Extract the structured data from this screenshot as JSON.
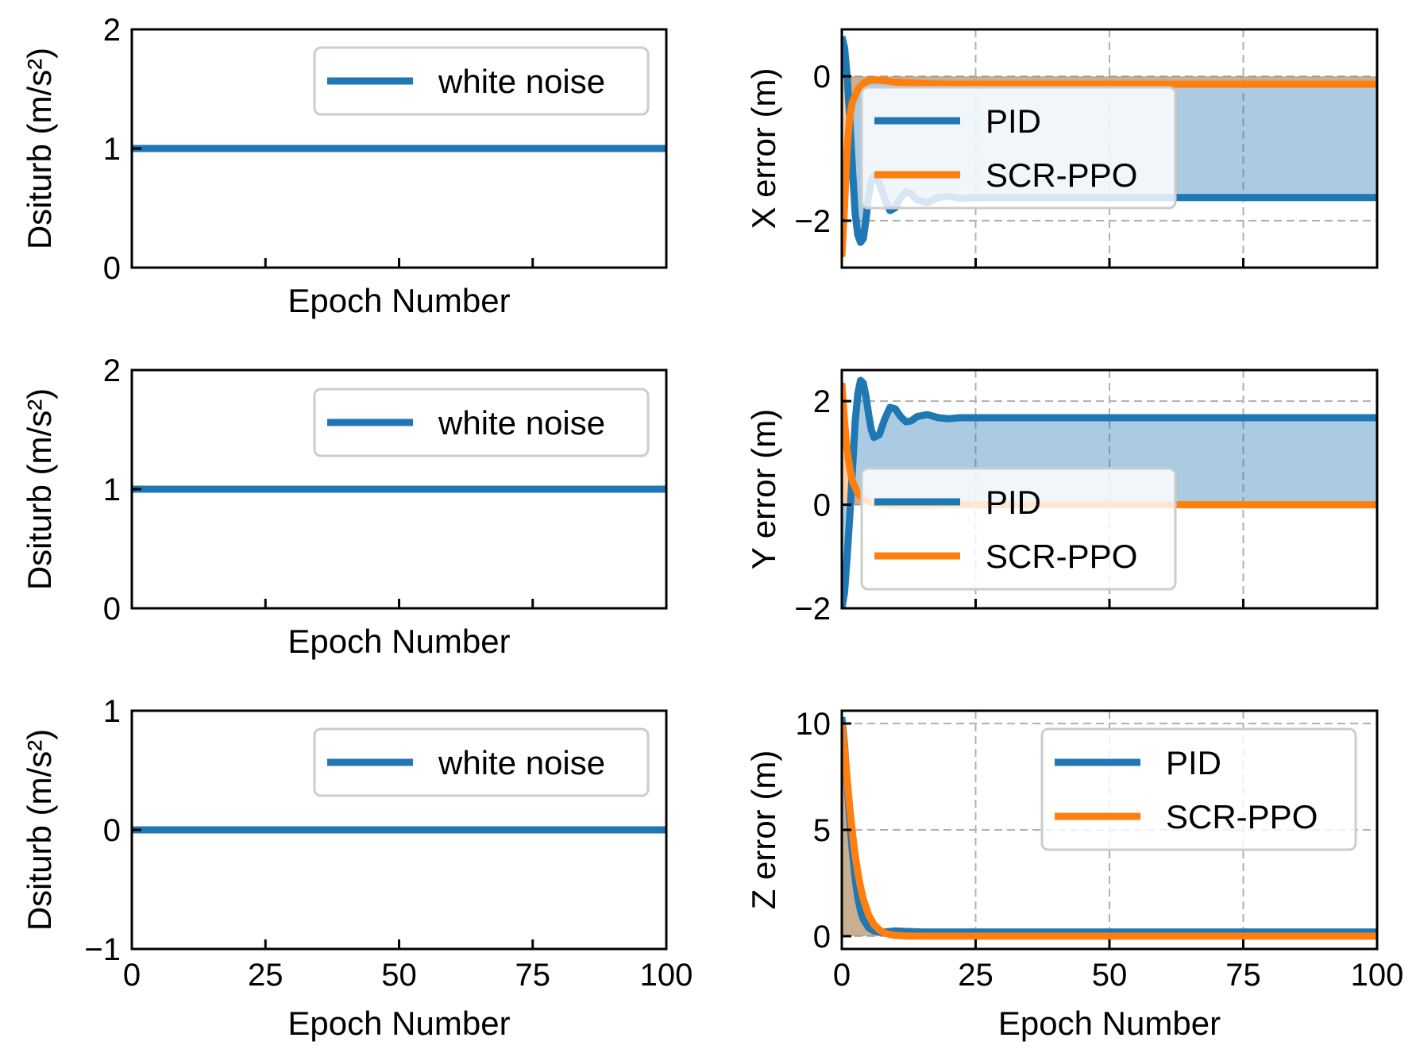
{
  "chart_data": [
    {
      "id": "disturb-x",
      "type": "line",
      "ylabel": "Dsiturb (m/s²)",
      "xlabel": "Epoch Number",
      "xlim": [
        0,
        100
      ],
      "ylim": [
        0,
        2
      ],
      "xticks": [
        0,
        25,
        50,
        75,
        100
      ],
      "show_xticklabels": false,
      "yticks": [
        {
          "v": 0,
          "label": "0"
        },
        {
          "v": 1,
          "label": "1"
        },
        {
          "v": 2,
          "label": "2"
        }
      ],
      "grid": false,
      "legend": {
        "position": "top-right"
      },
      "series": [
        {
          "name": "white noise",
          "color": "#1f77b4",
          "x": [
            0,
            100
          ],
          "y": [
            1,
            1
          ],
          "fill": false
        }
      ]
    },
    {
      "id": "x-error",
      "type": "line",
      "ylabel": "X error (m)",
      "xlabel": "",
      "xlim": [
        0,
        100
      ],
      "ylim": [
        -2.65,
        0.65
      ],
      "xticks": [
        0,
        25,
        50,
        75,
        100
      ],
      "show_xticklabels": false,
      "yticks": [
        {
          "v": -2,
          "label": "−2"
        },
        {
          "v": 0,
          "label": "0"
        }
      ],
      "grid": true,
      "legend": {
        "position": "center-left"
      },
      "series": [
        {
          "name": "PID",
          "color": "#1f77b4",
          "fill": true,
          "fill_color": "#1f77b4",
          "x": [
            0,
            0.5,
            1,
            1.5,
            2,
            2.5,
            3,
            3.5,
            4,
            4.5,
            5,
            5.5,
            6,
            7,
            8,
            9,
            10,
            11,
            12,
            13,
            14,
            16,
            18,
            20,
            22,
            25,
            30,
            50,
            100
          ],
          "y": [
            0.55,
            0.4,
            0.0,
            -0.6,
            -1.3,
            -1.9,
            -2.2,
            -2.3,
            -2.25,
            -2.0,
            -1.65,
            -1.45,
            -1.38,
            -1.48,
            -1.7,
            -1.86,
            -1.82,
            -1.68,
            -1.6,
            -1.63,
            -1.71,
            -1.75,
            -1.68,
            -1.66,
            -1.69,
            -1.68,
            -1.68,
            -1.68,
            -1.68
          ]
        },
        {
          "name": "SCR-PPO",
          "color": "#ff7f0e",
          "fill": true,
          "fill_color": "#ff7f0e",
          "x": [
            0,
            0.5,
            1,
            1.5,
            2,
            3,
            4,
            5,
            6,
            8,
            10,
            15,
            20,
            100
          ],
          "y": [
            -2.5,
            -1.8,
            -1.0,
            -0.55,
            -0.35,
            -0.18,
            -0.1,
            -0.06,
            -0.05,
            -0.06,
            -0.08,
            -0.1,
            -0.11,
            -0.11
          ]
        }
      ]
    },
    {
      "id": "disturb-y",
      "type": "line",
      "ylabel": "Dsiturb (m/s²)",
      "xlabel": "Epoch Number",
      "xlim": [
        0,
        100
      ],
      "ylim": [
        0,
        2
      ],
      "xticks": [
        0,
        25,
        50,
        75,
        100
      ],
      "show_xticklabels": false,
      "yticks": [
        {
          "v": 0,
          "label": "0"
        },
        {
          "v": 1,
          "label": "1"
        },
        {
          "v": 2,
          "label": "2"
        }
      ],
      "grid": false,
      "legend": {
        "position": "top-right"
      },
      "series": [
        {
          "name": "white noise",
          "color": "#1f77b4",
          "x": [
            0,
            100
          ],
          "y": [
            1,
            1
          ],
          "fill": false
        }
      ]
    },
    {
      "id": "y-error",
      "type": "line",
      "ylabel": "Y error (m)",
      "xlabel": "",
      "xlim": [
        0,
        100
      ],
      "ylim": [
        -2,
        2.6
      ],
      "xticks": [
        0,
        25,
        50,
        75,
        100
      ],
      "show_xticklabels": false,
      "yticks": [
        {
          "v": -2,
          "label": "−2"
        },
        {
          "v": 0,
          "label": "0"
        },
        {
          "v": 2,
          "label": "2"
        }
      ],
      "grid": true,
      "legend": {
        "position": "center-left"
      },
      "series": [
        {
          "name": "PID",
          "color": "#1f77b4",
          "fill": true,
          "fill_color": "#1f77b4",
          "x": [
            0,
            0.5,
            1,
            1.5,
            2,
            2.5,
            3,
            3.5,
            4,
            4.5,
            5,
            5.5,
            6,
            7,
            8,
            9,
            10,
            11,
            12,
            13,
            14,
            16,
            18,
            20,
            22,
            25,
            30,
            50,
            100
          ],
          "y": [
            -2.0,
            -1.7,
            -1.0,
            -0.2,
            0.7,
            1.6,
            2.15,
            2.4,
            2.35,
            2.1,
            1.75,
            1.45,
            1.3,
            1.35,
            1.65,
            1.88,
            1.85,
            1.7,
            1.6,
            1.62,
            1.7,
            1.74,
            1.68,
            1.66,
            1.68,
            1.68,
            1.68,
            1.68,
            1.68
          ]
        },
        {
          "name": "SCR-PPO",
          "color": "#ff7f0e",
          "fill": true,
          "fill_color": "#ff7f0e",
          "x": [
            0,
            0.5,
            1,
            1.5,
            2,
            3,
            4,
            5,
            6,
            8,
            10,
            15,
            20,
            100
          ],
          "y": [
            2.35,
            1.6,
            1.05,
            0.7,
            0.45,
            0.22,
            0.12,
            0.06,
            0.03,
            0.0,
            -0.01,
            -0.01,
            0.0,
            0.0
          ]
        }
      ]
    },
    {
      "id": "disturb-z",
      "type": "line",
      "ylabel": "Dsiturb (m/s²)",
      "xlabel": "Epoch Number",
      "xlim": [
        0,
        100
      ],
      "ylim": [
        -1,
        1
      ],
      "xticks": [
        0,
        25,
        50,
        75,
        100
      ],
      "show_xticklabels": true,
      "xticklabels": [
        "0",
        "25",
        "50",
        "75",
        "100"
      ],
      "yticks": [
        {
          "v": -1,
          "label": "−1"
        },
        {
          "v": 0,
          "label": "0"
        },
        {
          "v": 1,
          "label": "1"
        }
      ],
      "grid": false,
      "legend": {
        "position": "top-right"
      },
      "series": [
        {
          "name": "white noise",
          "color": "#1f77b4",
          "x": [
            0,
            100
          ],
          "y": [
            0,
            0
          ],
          "fill": false
        }
      ]
    },
    {
      "id": "z-error",
      "type": "line",
      "ylabel": "Z error (m)",
      "xlabel": "Epoch Number",
      "xlim": [
        0,
        100
      ],
      "ylim": [
        -0.6,
        10.6
      ],
      "xticks": [
        0,
        25,
        50,
        75,
        100
      ],
      "show_xticklabels": true,
      "xticklabels": [
        "0",
        "25",
        "50",
        "75",
        "100"
      ],
      "yticks": [
        {
          "v": 0,
          "label": "0"
        },
        {
          "v": 5,
          "label": "5"
        },
        {
          "v": 10,
          "label": "10"
        }
      ],
      "grid": true,
      "legend": {
        "position": "top-right"
      },
      "series": [
        {
          "name": "PID",
          "color": "#1f77b4",
          "fill": true,
          "fill_color": "#1f77b4",
          "x": [
            0,
            0.5,
            1,
            1.5,
            2,
            2.5,
            3,
            3.5,
            4,
            5,
            6,
            7,
            8,
            9,
            10,
            12,
            15,
            20,
            100
          ],
          "y": [
            10.3,
            9.0,
            7.2,
            5.4,
            3.9,
            2.7,
            1.8,
            1.2,
            0.8,
            0.4,
            0.25,
            0.2,
            0.2,
            0.22,
            0.25,
            0.22,
            0.2,
            0.2,
            0.2
          ]
        },
        {
          "name": "SCR-PPO",
          "color": "#ff7f0e",
          "fill": true,
          "fill_color": "#ff7f0e",
          "x": [
            0,
            0.5,
            1,
            1.5,
            2,
            2.5,
            3,
            3.5,
            4,
            5,
            6,
            7,
            8,
            9,
            10,
            12,
            15,
            20,
            100
          ],
          "y": [
            10.0,
            8.8,
            7.4,
            6.0,
            4.8,
            3.8,
            3.0,
            2.3,
            1.75,
            1.0,
            0.55,
            0.3,
            0.15,
            0.08,
            0.04,
            0.01,
            0.0,
            0.0,
            0.0
          ]
        }
      ]
    }
  ]
}
